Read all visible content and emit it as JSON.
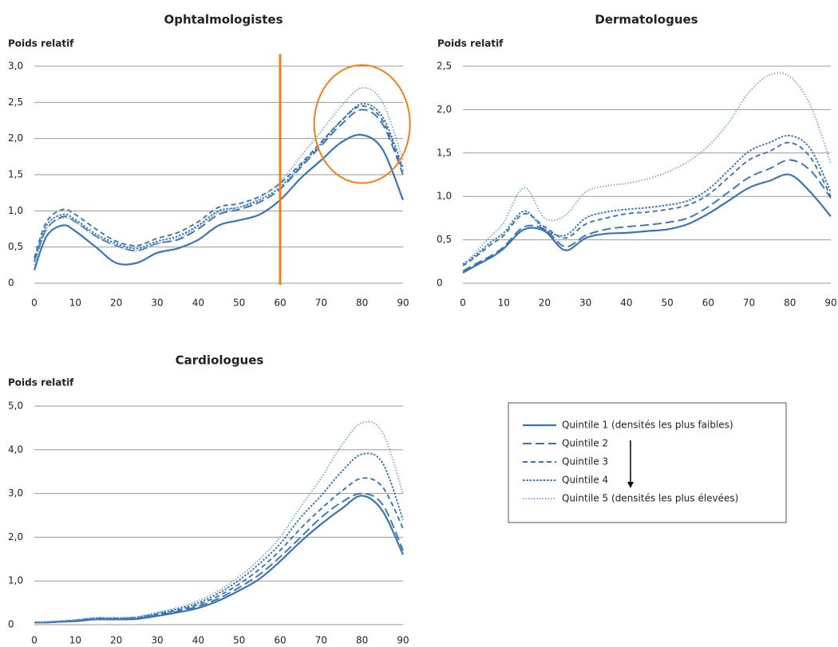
{
  "chart_data": [
    {
      "type": "line",
      "title": "Ophtalmologistes",
      "y_label": "Poids relatif",
      "x": [
        0,
        3,
        7,
        10,
        15,
        20,
        25,
        30,
        35,
        40,
        45,
        50,
        55,
        60,
        65,
        70,
        75,
        80,
        85,
        90
      ],
      "xlim": [
        0,
        90
      ],
      "xticks": [
        0,
        10,
        20,
        30,
        40,
        50,
        60,
        70,
        80,
        90
      ],
      "ylim": [
        0,
        3
      ],
      "yticks": [
        0,
        {
          "value": 0.5,
          "label": "0,5"
        },
        {
          "value": 1,
          "label": "1,0"
        },
        {
          "value": 1.5,
          "label": "1,5"
        },
        {
          "value": 2,
          "label": "2,0"
        },
        {
          "value": 2.5,
          "label": "2,5"
        },
        {
          "value": 3,
          "label": "3,0"
        }
      ],
      "grid": true,
      "highlight_line": {
        "x": 60,
        "color": "#f07f1a"
      },
      "highlight_circle": {
        "x": 80,
        "y": 2.2,
        "color": "#f07f1a"
      },
      "series": [
        {
          "name": "Quintile 1 (densités les plus faibles)",
          "color": "#3a74b5",
          "dash": "solid",
          "values": [
            0.18,
            0.65,
            0.8,
            0.72,
            0.5,
            0.28,
            0.28,
            0.42,
            0.48,
            0.6,
            0.8,
            0.87,
            0.95,
            1.15,
            1.45,
            1.7,
            1.95,
            2.05,
            1.85,
            1.15
          ]
        },
        {
          "name": "Quintile 2",
          "color": "#3a74b5",
          "dash": "longdash",
          "values": [
            0.3,
            0.75,
            0.92,
            0.85,
            0.65,
            0.52,
            0.45,
            0.55,
            0.6,
            0.75,
            0.95,
            1.02,
            1.12,
            1.3,
            1.6,
            1.9,
            2.2,
            2.4,
            2.2,
            1.5
          ]
        },
        {
          "name": "Quintile 3",
          "color": "#3a74b5",
          "dash": "dash",
          "values": [
            0.35,
            0.85,
            1.02,
            0.95,
            0.75,
            0.58,
            0.52,
            0.62,
            0.7,
            0.85,
            1.05,
            1.1,
            1.2,
            1.38,
            1.65,
            1.95,
            2.25,
            2.45,
            2.25,
            1.55
          ]
        },
        {
          "name": "Quintile 4",
          "color": "#3a74b5",
          "dash": "densedot",
          "values": [
            0.3,
            0.8,
            0.95,
            0.88,
            0.68,
            0.55,
            0.48,
            0.58,
            0.65,
            0.8,
            1.0,
            1.05,
            1.15,
            1.33,
            1.62,
            1.93,
            2.25,
            2.48,
            2.3,
            1.6
          ]
        },
        {
          "name": "Quintile 5 (densités les plus élevées)",
          "color": "#6f9fd4",
          "dash": "dot",
          "values": [
            0.25,
            0.75,
            0.9,
            0.85,
            0.65,
            0.52,
            0.45,
            0.55,
            0.62,
            0.78,
            0.98,
            1.05,
            1.18,
            1.4,
            1.75,
            2.1,
            2.45,
            2.7,
            2.5,
            1.7
          ]
        }
      ]
    },
    {
      "type": "line",
      "title": "Dermatologues",
      "y_label": "Poids relatif",
      "x": [
        0,
        3,
        7,
        10,
        15,
        20,
        25,
        30,
        35,
        40,
        45,
        50,
        55,
        60,
        65,
        70,
        75,
        80,
        85,
        90
      ],
      "xlim": [
        0,
        90
      ],
      "xticks": [
        0,
        10,
        20,
        30,
        40,
        50,
        60,
        70,
        80,
        90
      ],
      "ylim": [
        0,
        2.5
      ],
      "yticks": [
        0,
        {
          "value": 0.5,
          "label": "0,5"
        },
        {
          "value": 1,
          "label": "1,0"
        },
        {
          "value": 1.5,
          "label": "1,5"
        },
        {
          "value": 2,
          "label": "2,0"
        },
        {
          "value": 2.5,
          "label": "2,5"
        }
      ],
      "grid": true,
      "series": [
        {
          "color": "#3a74b5",
          "dash": "solid",
          "values": [
            0.12,
            0.2,
            0.3,
            0.4,
            0.62,
            0.6,
            0.38,
            0.52,
            0.57,
            0.58,
            0.6,
            0.62,
            0.68,
            0.8,
            0.95,
            1.1,
            1.18,
            1.25,
            1.05,
            0.77
          ]
        },
        {
          "color": "#3a74b5",
          "dash": "longdash",
          "values": [
            0.14,
            0.22,
            0.32,
            0.42,
            0.65,
            0.62,
            0.42,
            0.55,
            0.62,
            0.65,
            0.67,
            0.7,
            0.75,
            0.88,
            1.05,
            1.22,
            1.32,
            1.42,
            1.3,
            0.98
          ]
        },
        {
          "color": "#3a74b5",
          "dash": "dash",
          "values": [
            0.2,
            0.3,
            0.45,
            0.55,
            0.8,
            0.65,
            0.52,
            0.68,
            0.75,
            0.8,
            0.82,
            0.85,
            0.9,
            1.02,
            1.22,
            1.42,
            1.52,
            1.62,
            1.45,
            1.0
          ]
        },
        {
          "color": "#3a74b5",
          "dash": "densedot",
          "values": [
            0.22,
            0.32,
            0.48,
            0.58,
            0.83,
            0.62,
            0.55,
            0.75,
            0.82,
            0.85,
            0.87,
            0.9,
            0.95,
            1.08,
            1.3,
            1.52,
            1.62,
            1.7,
            1.55,
            1.05
          ]
        },
        {
          "color": "#6f9fd4",
          "dash": "dot",
          "values": [
            0.2,
            0.35,
            0.55,
            0.7,
            1.1,
            0.75,
            0.78,
            1.05,
            1.12,
            1.15,
            1.2,
            1.28,
            1.4,
            1.58,
            1.85,
            2.2,
            2.4,
            2.38,
            2.05,
            1.38
          ]
        }
      ]
    },
    {
      "type": "line",
      "title": "Cardiologues",
      "y_label": "Poids relatif",
      "x": [
        0,
        3,
        7,
        10,
        15,
        20,
        25,
        30,
        35,
        40,
        45,
        50,
        55,
        60,
        65,
        70,
        75,
        80,
        85,
        90
      ],
      "xlim": [
        0,
        90
      ],
      "xticks": [
        0,
        10,
        20,
        30,
        40,
        50,
        60,
        70,
        80,
        90
      ],
      "ylim": [
        0,
        5
      ],
      "yticks": [
        0,
        {
          "value": 1,
          "label": "1,0"
        },
        {
          "value": 2,
          "label": "2,0"
        },
        {
          "value": 3,
          "label": "3,0"
        },
        {
          "value": 4,
          "label": "4,0"
        },
        {
          "value": 5,
          "label": "5,0"
        }
      ],
      "grid": true,
      "series": [
        {
          "color": "#3a74b5",
          "dash": "solid",
          "values": [
            0.05,
            0.05,
            0.07,
            0.08,
            0.12,
            0.12,
            0.13,
            0.2,
            0.28,
            0.38,
            0.55,
            0.78,
            1.05,
            1.45,
            1.9,
            2.3,
            2.65,
            2.95,
            2.6,
            1.6
          ]
        },
        {
          "color": "#3a74b5",
          "dash": "longdash",
          "values": [
            0.05,
            0.05,
            0.07,
            0.09,
            0.13,
            0.13,
            0.14,
            0.22,
            0.3,
            0.42,
            0.6,
            0.85,
            1.15,
            1.55,
            2.0,
            2.45,
            2.8,
            3.0,
            2.75,
            1.7
          ]
        },
        {
          "color": "#3a74b5",
          "dash": "dash",
          "values": [
            0.05,
            0.06,
            0.08,
            0.1,
            0.14,
            0.14,
            0.16,
            0.24,
            0.33,
            0.46,
            0.66,
            0.93,
            1.27,
            1.7,
            2.2,
            2.65,
            3.05,
            3.35,
            3.15,
            2.2
          ]
        },
        {
          "color": "#3a74b5",
          "dash": "densedot",
          "values": [
            0.05,
            0.06,
            0.08,
            0.1,
            0.15,
            0.15,
            0.17,
            0.26,
            0.36,
            0.5,
            0.72,
            1.02,
            1.4,
            1.85,
            2.45,
            2.95,
            3.5,
            3.9,
            3.7,
            2.4
          ]
        },
        {
          "color": "#6f9fd4",
          "dash": "dot",
          "values": [
            0.05,
            0.06,
            0.09,
            0.11,
            0.16,
            0.16,
            0.18,
            0.28,
            0.39,
            0.55,
            0.78,
            1.1,
            1.5,
            2.0,
            2.7,
            3.35,
            4.1,
            4.62,
            4.4,
            3.0
          ]
        }
      ]
    }
  ]
}
